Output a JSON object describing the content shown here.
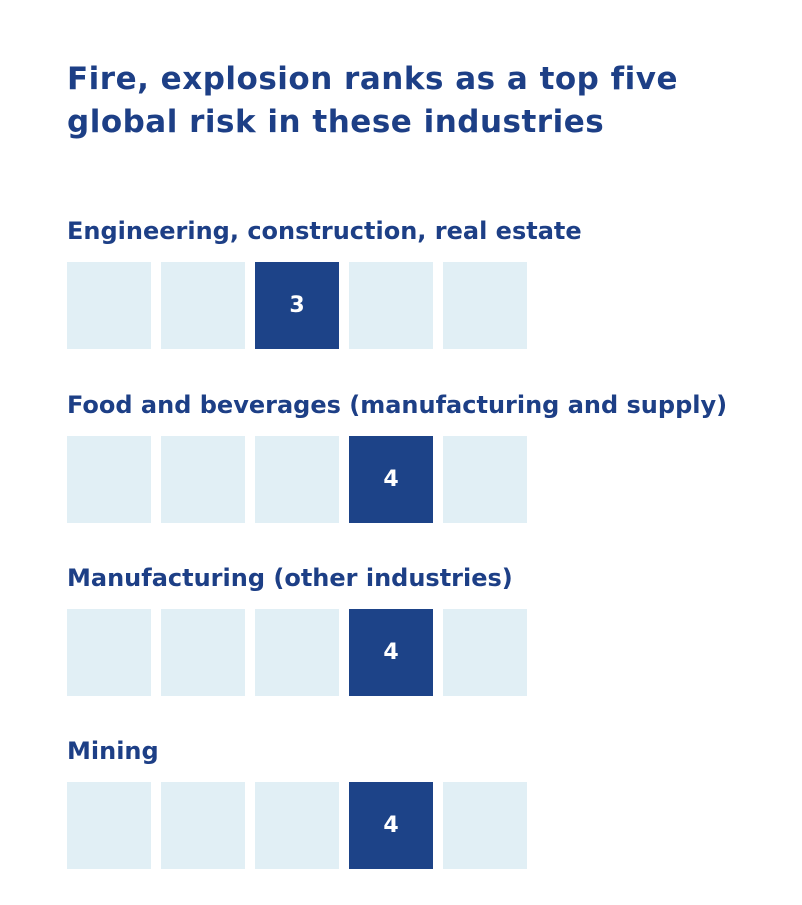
{
  "chart_data": {
    "type": "table",
    "title": "Fire, explosion ranks as a top five global risk in these industries",
    "max_rank": 5,
    "colors": {
      "active": "#1d4388",
      "inactive": "#e1eff5",
      "text": "#1d3f86"
    },
    "industries": [
      {
        "label": "Engineering, construction, real estate",
        "rank": 3
      },
      {
        "label": "Food and beverages (manufacturing and supply)",
        "rank": 4
      },
      {
        "label": "Manufacturing (other industries)",
        "rank": 4
      },
      {
        "label": "Mining",
        "rank": 4
      }
    ]
  }
}
